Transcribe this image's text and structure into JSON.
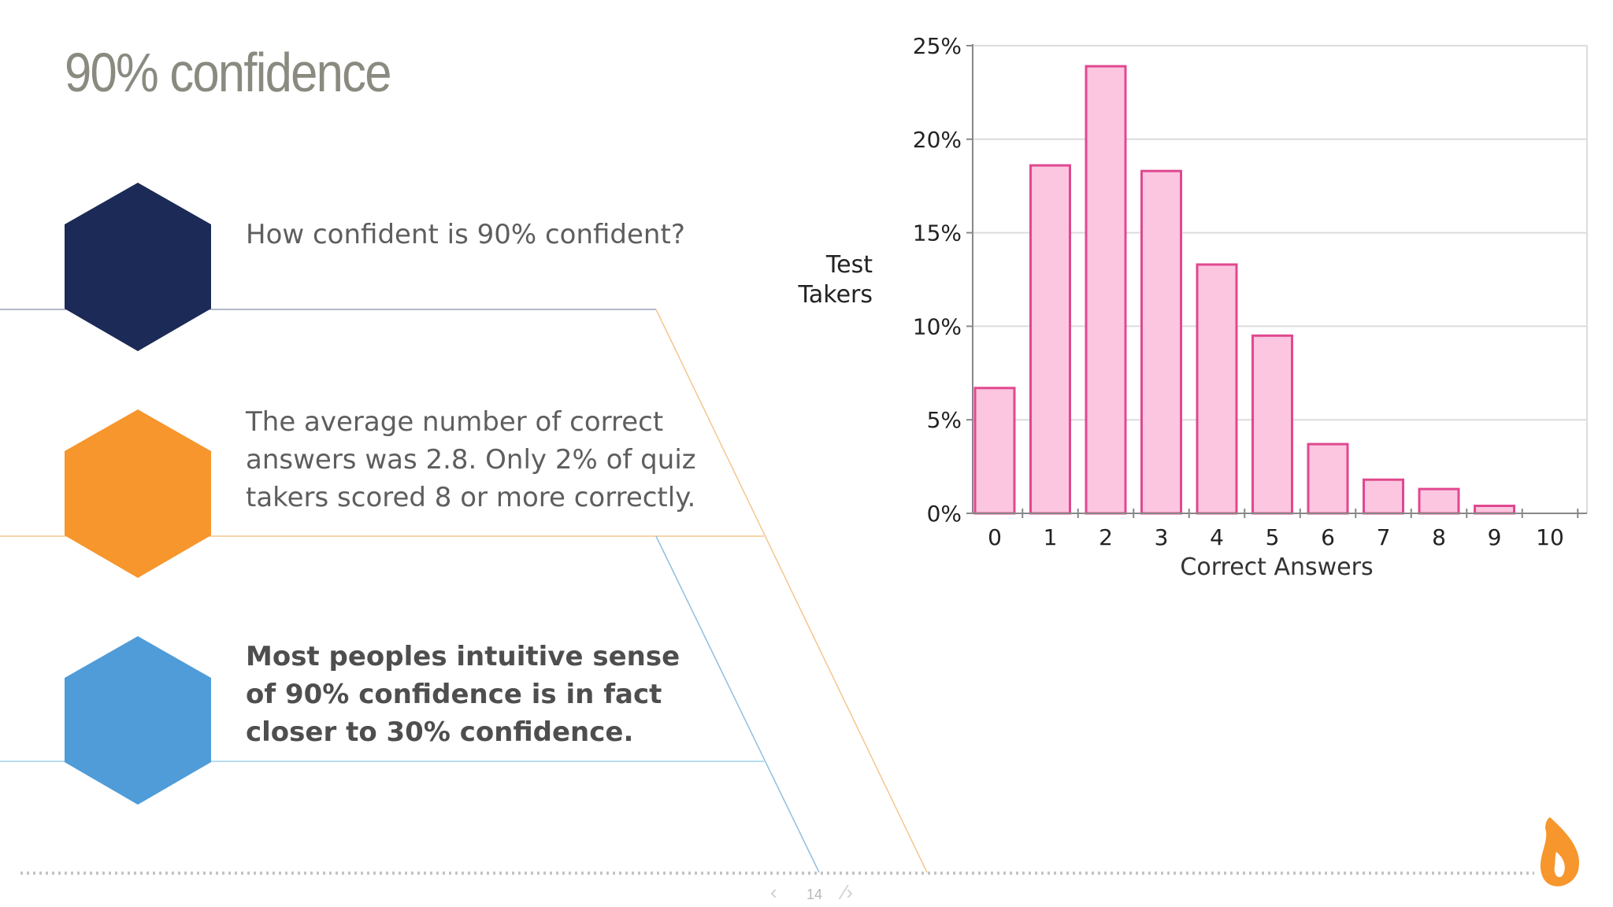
{
  "slide": {
    "title": "90% confidence",
    "page_number": "14",
    "colors": {
      "navy": "#1b2a56",
      "orange": "#f6962d",
      "blue": "#4f9cd8",
      "bar_fill": "#fcc6e0",
      "bar_stroke": "#e0488f"
    }
  },
  "bullets": [
    {
      "lines": [
        "How confident is 90% confident?"
      ],
      "bold": false,
      "icon": "navy-hexagon-icon"
    },
    {
      "lines": [
        "The average number of correct",
        "answers was 2.8.  Only 2% of quiz",
        "takers scored 8 or more correctly."
      ],
      "bold": false,
      "icon": "orange-hexagon-icon"
    },
    {
      "lines": [
        "Most peoples intuitive sense",
        "of 90% confidence is in fact",
        "closer to 30% confidence."
      ],
      "bold": true,
      "icon": "blue-hexagon-icon"
    }
  ],
  "chart_data": {
    "type": "bar",
    "categories": [
      "0",
      "1",
      "2",
      "3",
      "4",
      "5",
      "6",
      "7",
      "8",
      "9",
      "10"
    ],
    "values": [
      6.7,
      18.6,
      23.9,
      18.3,
      13.3,
      9.5,
      3.7,
      1.8,
      1.3,
      0.4,
      0
    ],
    "xlabel": "Correct Answers",
    "ylabel_lines": [
      "Test",
      "Takers"
    ],
    "ylim": [
      0,
      25
    ],
    "yticks": [
      "0%",
      "5%",
      "10%",
      "15%",
      "20%",
      "25%"
    ],
    "ytick_values": [
      0,
      5,
      10,
      15,
      20,
      25
    ],
    "grid": true,
    "legend": "none"
  }
}
